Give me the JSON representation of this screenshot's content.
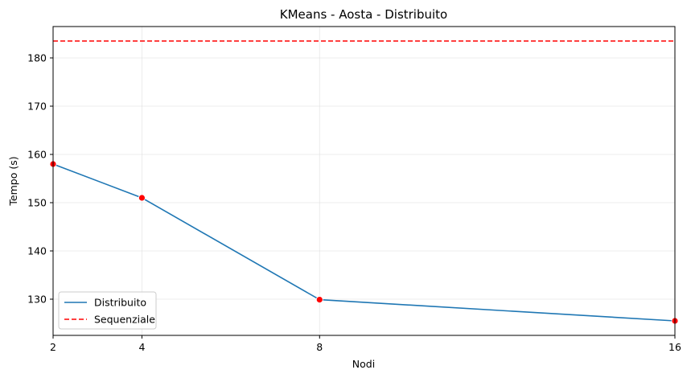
{
  "chart_data": {
    "type": "line",
    "title": "KMeans - Aosta - Distribuito",
    "xlabel": "Nodi",
    "ylabel": "Tempo (s)",
    "x": [
      2,
      4,
      8,
      16
    ],
    "xticks": [
      2,
      4,
      8,
      16
    ],
    "xlim": [
      2,
      16
    ],
    "yticks": [
      130,
      140,
      150,
      160,
      170,
      180
    ],
    "ylim": [
      122.5,
      186.5
    ],
    "grid": true,
    "legend_position": "lower-left",
    "series": [
      {
        "name": "Distribuito",
        "values": [
          158.0,
          151.0,
          129.9,
          125.5
        ],
        "color": "#1f77b4",
        "marker_color": "#ff0000",
        "style": "solid"
      },
      {
        "name": "Sequenziale",
        "type": "hline",
        "value": 183.5,
        "color": "#ff0000",
        "style": "dashed"
      }
    ]
  }
}
